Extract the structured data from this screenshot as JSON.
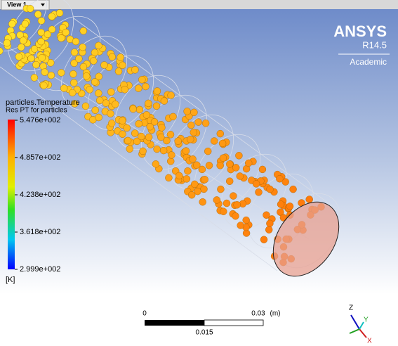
{
  "view_tab": "View 1",
  "logo": {
    "brand": "ANSYS",
    "release": "R14.5",
    "license": "Academic"
  },
  "legend": {
    "title": "particles.Temperature",
    "subtitle": "Res PT for particles",
    "labels": [
      "5.476e+002",
      "4.857e+002",
      "4.238e+002",
      "3.618e+002",
      "2.999e+002"
    ],
    "unit": "[K]"
  },
  "scale_bar": {
    "start": "0",
    "end": "0.03",
    "unit": "(m)",
    "mid": "0.015"
  },
  "triad": {
    "z": "Z",
    "y": "Y",
    "x": "X"
  }
}
